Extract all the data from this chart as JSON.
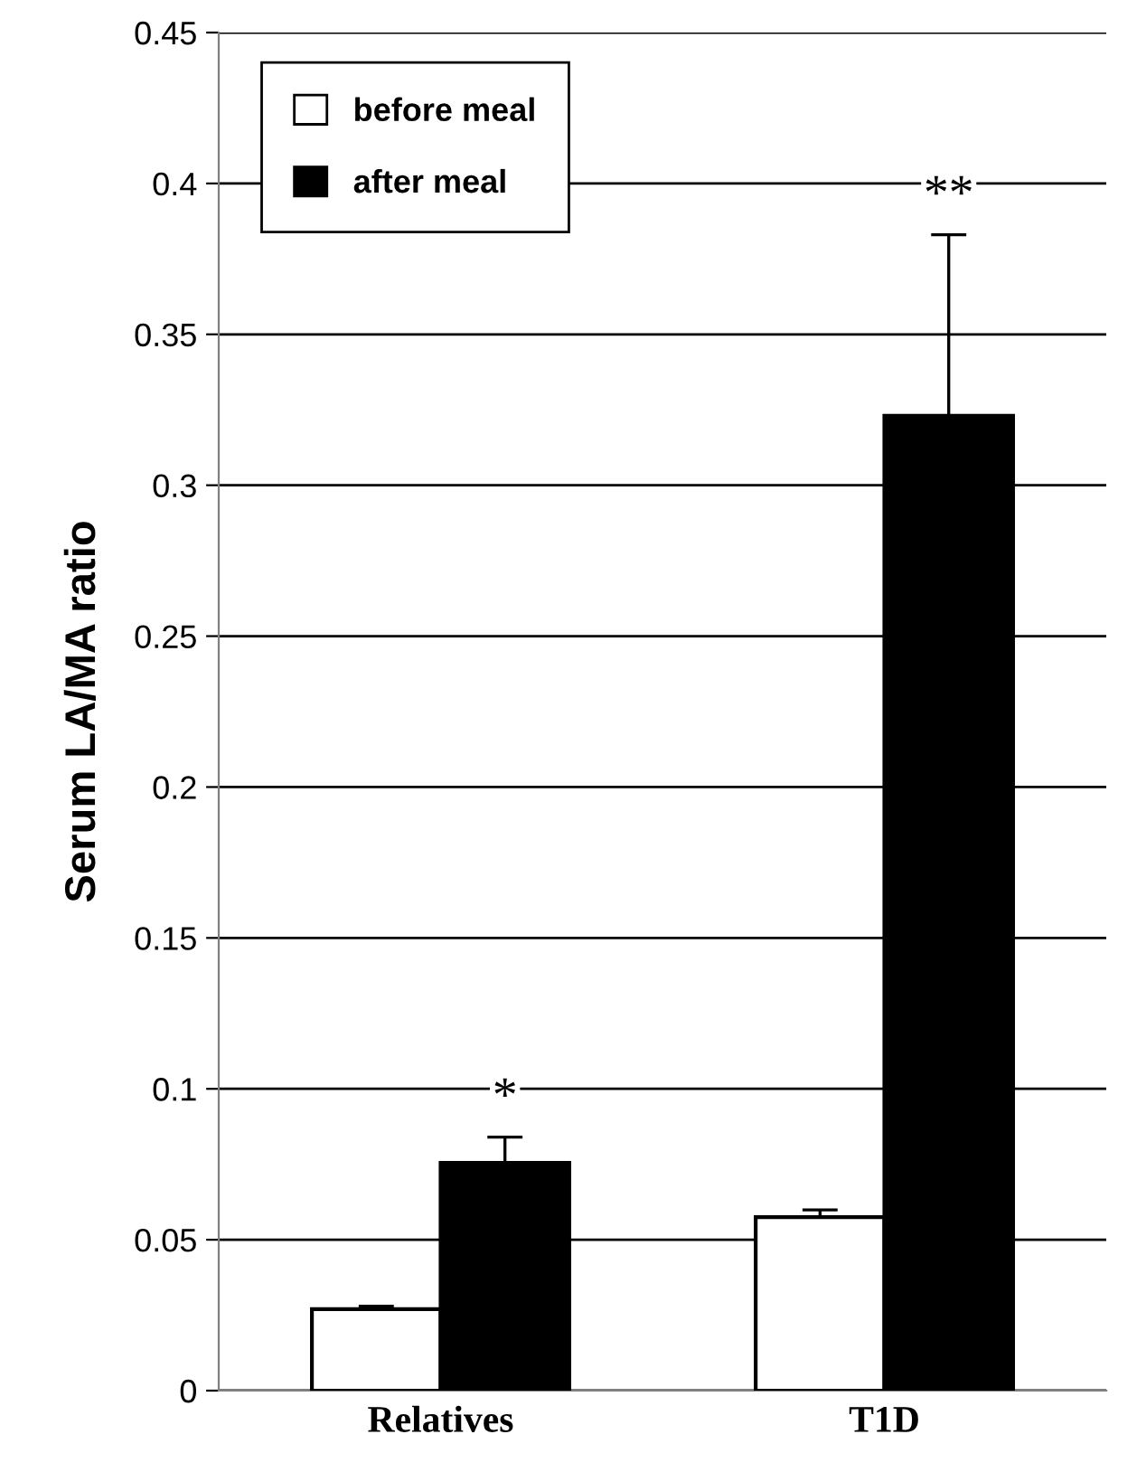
{
  "chart_data": {
    "type": "bar",
    "ylabel": "Serum LA/MA ratio",
    "categories": [
      "Relatives",
      "T1D"
    ],
    "series": [
      {
        "name": "before meal",
        "color": "#ffffff",
        "values": [
          0.027,
          0.0575
        ],
        "errors": [
          0.001,
          0.0024
        ]
      },
      {
        "name": "after meal",
        "color": "#000000",
        "values": [
          0.0755,
          0.323
        ],
        "errors": [
          0.0085,
          0.06
        ]
      }
    ],
    "ylim": [
      0,
      0.45
    ],
    "yticks": [
      0,
      0.05,
      0.1,
      0.15,
      0.2,
      0.25,
      0.3,
      0.35,
      0.4,
      0.45
    ],
    "grid": "y",
    "legend": "top left",
    "annotations": [
      "*",
      "**"
    ]
  }
}
